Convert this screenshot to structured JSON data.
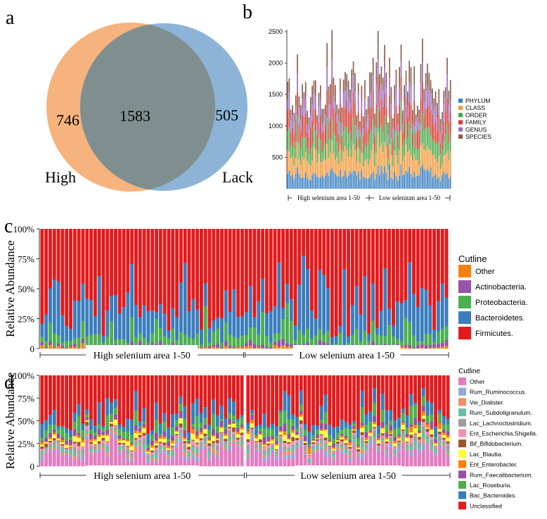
{
  "panels": {
    "a": {
      "letter": "a",
      "venn": {
        "left_label": "High",
        "right_label": "Lack",
        "left_only": "746",
        "shared": "1583",
        "right_only": "505",
        "colors": {
          "left": "#f6b37d",
          "right": "#8db4d6",
          "overlap": "#7f8f8f"
        }
      }
    },
    "b": {
      "letter": "b",
      "group_labels": [
        "High selenium area 1-50",
        "Low selenium area 1-50"
      ]
    },
    "c": {
      "letter": "c",
      "group_labels": [
        "High selenium area 1-50",
        "Low selenium area 1-50"
      ]
    },
    "d": {
      "letter": "d",
      "group_labels": [
        "High selenium area 1-50",
        "Low selenium area 1-50"
      ]
    }
  },
  "chart_data": [
    {
      "panel": "b",
      "type": "bar",
      "stacked": true,
      "n_samples": 100,
      "ylim": [
        0,
        2500
      ],
      "yticks": [
        500,
        1000,
        1500,
        2000,
        2500
      ],
      "legend": {
        "position": "right",
        "entries": [
          "PHYLUM",
          "CLASS",
          "ORDER",
          "FAMILY",
          "GENUS",
          "SPECIES"
        ]
      },
      "colors": [
        "#3a7fc1",
        "#f39a3c",
        "#4aa84a",
        "#d63a2f",
        "#9c6bbf",
        "#8b5a4b"
      ],
      "mean_totals": 1700,
      "series_mean_share": [
        0.14,
        0.19,
        0.18,
        0.2,
        0.14,
        0.15
      ]
    },
    {
      "panel": "c",
      "type": "bar",
      "stacked": true,
      "normalized": true,
      "n_samples": 100,
      "ylabel": "Relative Abundance",
      "yticks": [
        "0",
        "25%",
        "50%",
        "75%",
        "100%"
      ],
      "legend": {
        "title": "Cutline",
        "position": "right",
        "entries": [
          "Other",
          "Actinobacteria.",
          "Proteobacteria.",
          "Bacteroidetes.",
          "Firmicutes."
        ]
      },
      "colors": {
        "Other": "#f5820f",
        "Actinobacteria.": "#9553a9",
        "Proteobacteria.": "#4caf50",
        "Bacteroidetes.": "#3b7dbd",
        "Firmicutes.": "#e41a1c"
      },
      "mean_share": {
        "Other": 0.01,
        "Actinobacteria.": 0.02,
        "Proteobacteria.": 0.08,
        "Bacteroidetes.": 0.25,
        "Firmicutes.": 0.64
      }
    },
    {
      "panel": "d",
      "type": "bar",
      "stacked": true,
      "normalized": true,
      "n_samples": 100,
      "ylabel": "Relative Abundance",
      "yticks": [
        "0",
        "25%",
        "50%",
        "75%",
        "100%"
      ],
      "legend": {
        "title": "Cutline",
        "position": "right",
        "entries": [
          "Other",
          "Rum_Ruminococcus.",
          "Vei_Dialister.",
          "Rum_Subdoligranulum.",
          "Lac_Lachnoclostridium.",
          "Ent_Escherichia.Shigella.",
          "Bif_Bifidobacterium.",
          "Lac_Blautia.",
          "Ent_Enterobacter.",
          "Rum_Faecalibacterium.",
          "Lac_Roseburia.",
          "Bac_Bacteroides.",
          "Unclassified"
        ]
      },
      "colors": [
        "#e57bc0",
        "#8fa9d8",
        "#f28e6b",
        "#66c2a5",
        "#9e9e9e",
        "#f48fb1",
        "#a0522d",
        "#ffff33",
        "#ff7f00",
        "#984ea3",
        "#4daf4a",
        "#377eb8",
        "#e41a1c"
      ],
      "mean_share": [
        0.14,
        0.03,
        0.02,
        0.03,
        0.03,
        0.02,
        0.02,
        0.03,
        0.02,
        0.04,
        0.07,
        0.1,
        0.45
      ]
    }
  ]
}
